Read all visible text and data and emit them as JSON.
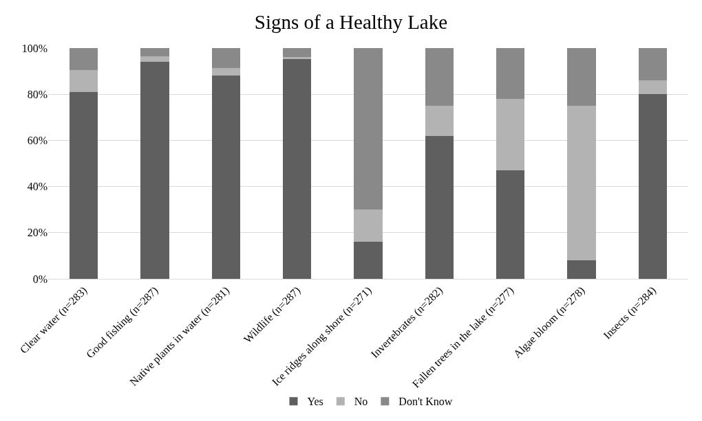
{
  "chart_data": {
    "type": "bar",
    "title": "Signs of a Healthy Lake",
    "stacked": true,
    "categories": [
      "Clear water (n=283)",
      "Good fishing (n=287)",
      "Native plants in water (n=281)",
      "Wildlife (n=287)",
      "Ice ridges along shore (n=271)",
      "Invertebrates (n=282)",
      "Fallen trees in the lake (n=277)",
      "Algae bloom (n=278)",
      "Insects (n=284)"
    ],
    "series": [
      {
        "name": "Yes",
        "color": "#5f5f5f",
        "values": [
          81,
          94,
          88,
          95.5,
          16,
          62,
          47,
          8,
          80
        ]
      },
      {
        "name": "No",
        "color": "#b3b3b3",
        "values": [
          9.5,
          2.5,
          3.5,
          0.5,
          14,
          13,
          31,
          67,
          6
        ]
      },
      {
        "name": "Don't Know",
        "color": "#898989",
        "values": [
          9.5,
          3.5,
          8.5,
          4,
          70,
          25,
          22,
          25,
          14
        ]
      }
    ],
    "ylim": [
      0,
      100
    ],
    "yticks": [
      {
        "value": 0,
        "label": "0%"
      },
      {
        "value": 20,
        "label": "20%"
      },
      {
        "value": 40,
        "label": "40%"
      },
      {
        "value": 60,
        "label": "60%"
      },
      {
        "value": 80,
        "label": "80%"
      },
      {
        "value": 100,
        "label": "100%"
      }
    ],
    "grid": "y",
    "legend": "bottom"
  }
}
